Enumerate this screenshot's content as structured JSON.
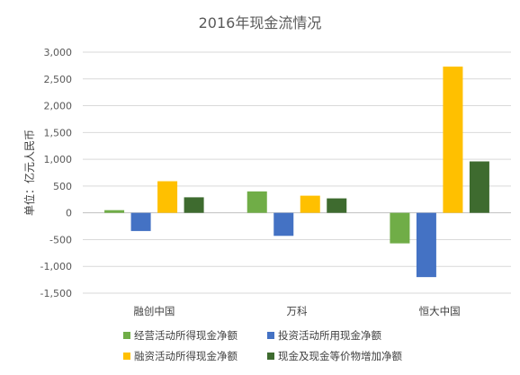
{
  "chart_data": {
    "type": "bar",
    "title": "2016年现金流情况",
    "ylabel": "单位：亿元人民币",
    "xlabel": "",
    "categories": [
      "融创中国",
      "万科",
      "恒大中国"
    ],
    "ylim": [
      -1500,
      3000
    ],
    "yticks": [
      3000,
      2500,
      2000,
      1500,
      1000,
      500,
      0,
      -500,
      -1000,
      -1500
    ],
    "ytick_labels": [
      "3,000",
      "2,500",
      "2,000",
      "1,500",
      "1,000",
      "500",
      "0",
      "-500",
      "-1,000",
      "-1,500"
    ],
    "grid": true,
    "legend_position": "bottom",
    "series": [
      {
        "name": "经营活动所得现金净额",
        "color": "#70AD47",
        "values": [
          50,
          400,
          -570
        ]
      },
      {
        "name": "投资活动所用现金净额",
        "color": "#4472C4",
        "values": [
          -340,
          -430,
          -1200
        ]
      },
      {
        "name": "融资活动所得现金净额",
        "color": "#FFC000",
        "values": [
          590,
          320,
          2730
        ]
      },
      {
        "name": "现金及现金等价物增加净额",
        "color": "#3E6B2F",
        "values": [
          290,
          270,
          960
        ]
      }
    ]
  }
}
